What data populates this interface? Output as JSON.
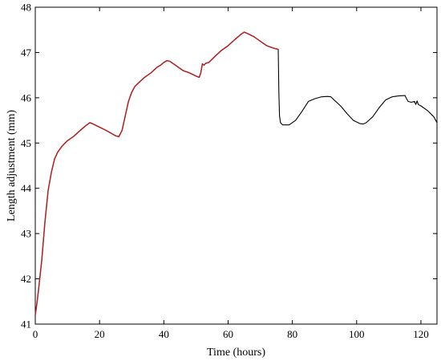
{
  "chart_data": {
    "type": "line",
    "title": "",
    "xlabel": "Time (hours)",
    "ylabel": "Length adjustment (mm)",
    "xlim": [
      0,
      125
    ],
    "ylim": [
      41,
      48
    ],
    "xticks": [
      0,
      20,
      40,
      60,
      80,
      100,
      120
    ],
    "yticks": [
      41,
      42,
      43,
      44,
      45,
      46,
      47,
      48
    ],
    "grid": false,
    "legend": "none",
    "series": [
      {
        "color": "#000000",
        "x": [
          0,
          0.5,
          1,
          2,
          3,
          4,
          5,
          6,
          7,
          8,
          9,
          10,
          12,
          14,
          16,
          17,
          18,
          20,
          22,
          24,
          25,
          26,
          27,
          28,
          29,
          30,
          31,
          32,
          34,
          36,
          38,
          39,
          40,
          41,
          42,
          44,
          46,
          48,
          50,
          51,
          51.5,
          52,
          52.5,
          53,
          54,
          56,
          58,
          60,
          62,
          64,
          65,
          66,
          68,
          70,
          72,
          74,
          75,
          75.6,
          75.8,
          76,
          76.3,
          77,
          79,
          81,
          83,
          85,
          87,
          89,
          91,
          92,
          93,
          95,
          97,
          99,
          101,
          102,
          103,
          105,
          107,
          109,
          111,
          113,
          115,
          116,
          117,
          118,
          118.4,
          118.8,
          119.2,
          120,
          122,
          124,
          125
        ],
        "y": [
          41.2,
          41.45,
          41.75,
          42.4,
          43.25,
          43.95,
          44.35,
          44.65,
          44.8,
          44.9,
          44.98,
          45.05,
          45.15,
          45.28,
          45.4,
          45.45,
          45.42,
          45.35,
          45.28,
          45.2,
          45.16,
          45.14,
          45.28,
          45.6,
          45.92,
          46.12,
          46.25,
          46.32,
          46.45,
          46.55,
          46.68,
          46.72,
          46.78,
          46.82,
          46.8,
          46.7,
          46.6,
          46.55,
          46.48,
          46.45,
          46.55,
          46.75,
          46.72,
          46.76,
          46.78,
          46.92,
          47.05,
          47.15,
          47.28,
          47.4,
          47.45,
          47.42,
          47.35,
          47.25,
          47.15,
          47.1,
          47.08,
          47.07,
          46.1,
          45.6,
          45.45,
          45.4,
          45.4,
          45.5,
          45.7,
          45.92,
          45.98,
          46.02,
          46.03,
          46.02,
          45.95,
          45.82,
          45.65,
          45.5,
          45.43,
          45.42,
          45.45,
          45.58,
          45.78,
          45.95,
          46.02,
          46.04,
          46.05,
          45.92,
          45.9,
          45.92,
          45.85,
          45.93,
          45.85,
          45.82,
          45.72,
          45.58,
          45.45
        ]
      },
      {
        "color": "#b22222",
        "x": [
          0,
          0.5,
          1,
          2,
          3,
          4,
          5,
          6,
          7,
          8,
          9,
          10,
          12,
          14,
          16,
          17,
          18,
          20,
          22,
          24,
          25,
          26,
          27,
          28,
          29,
          30,
          31,
          32,
          34,
          36,
          38,
          39,
          40,
          41,
          42,
          44,
          46,
          48,
          50,
          51,
          51.5,
          52,
          52.5,
          53,
          54,
          56,
          58,
          60,
          62,
          64,
          65,
          66,
          68,
          70,
          72,
          74,
          75,
          75.6
        ],
        "y": [
          41.2,
          41.45,
          41.75,
          42.4,
          43.25,
          43.95,
          44.35,
          44.65,
          44.8,
          44.9,
          44.98,
          45.05,
          45.15,
          45.28,
          45.4,
          45.45,
          45.42,
          45.35,
          45.28,
          45.2,
          45.16,
          45.14,
          45.28,
          45.6,
          45.92,
          46.12,
          46.25,
          46.32,
          46.45,
          46.55,
          46.68,
          46.72,
          46.78,
          46.82,
          46.8,
          46.7,
          46.6,
          46.55,
          46.48,
          46.45,
          46.55,
          46.75,
          46.72,
          46.76,
          46.78,
          46.92,
          47.05,
          47.15,
          47.28,
          47.4,
          47.45,
          47.42,
          47.35,
          47.25,
          47.15,
          47.1,
          47.08,
          47.07
        ]
      }
    ]
  }
}
